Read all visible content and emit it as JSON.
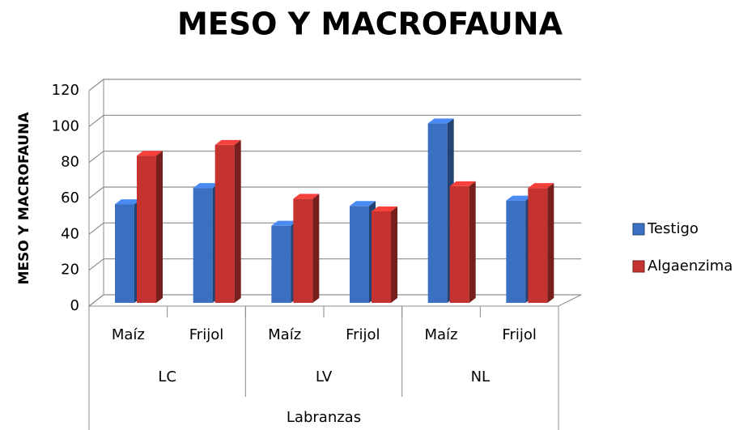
{
  "chart_data": {
    "type": "bar3d",
    "title": "MESO Y MACROFAUNA",
    "y_label": "MESO  Y MACROFAUNA",
    "x_label": "Labranzas",
    "categories": [
      "Maíz",
      "Frijol",
      "Maíz",
      "Frijol",
      "Maíz",
      "Frijol"
    ],
    "groups": [
      "LC",
      "LV",
      "NL"
    ],
    "series": [
      {
        "name": "Testigo",
        "color": "#3b6fc2",
        "values": [
          55,
          64,
          43,
          54,
          100,
          57
        ]
      },
      {
        "name": "Algaenzima",
        "color": "#c53330",
        "values": [
          82,
          88,
          58,
          51,
          65,
          64
        ]
      }
    ],
    "ylim": [
      0,
      120
    ],
    "yticks": [
      0,
      20,
      40,
      60,
      80,
      100,
      120
    ],
    "grid": true
  }
}
